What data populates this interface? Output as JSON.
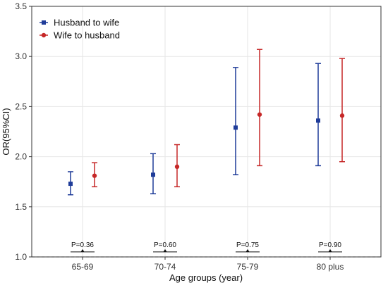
{
  "chart_data": {
    "type": "scatter",
    "xlabel": "Age groups (year)",
    "ylabel": "OR(95%CI)",
    "ylim": [
      1.0,
      3.5
    ],
    "yticks": [
      "1.0",
      "1.5",
      "2.0",
      "2.5",
      "3.0",
      "3.5"
    ],
    "categories": [
      "65-69",
      "70-74",
      "75-79",
      "80 plus"
    ],
    "grid": true,
    "legend_position": "top-left",
    "reference_line": 1.0,
    "series": [
      {
        "name": "Husband to wife",
        "color": "#1f3c99",
        "marker": "square",
        "values": [
          1.73,
          1.82,
          2.29,
          2.36
        ],
        "lower": [
          1.62,
          1.63,
          1.82,
          1.91
        ],
        "upper": [
          1.85,
          2.03,
          2.89,
          2.93
        ]
      },
      {
        "name": "Wife to husband",
        "color": "#c62828",
        "marker": "circle",
        "values": [
          1.81,
          1.9,
          2.42,
          2.41
        ],
        "lower": [
          1.7,
          1.7,
          1.91,
          1.95
        ],
        "upper": [
          1.94,
          2.12,
          3.07,
          2.98
        ]
      }
    ],
    "annotations": [
      "P=0.36",
      "P=0.60",
      "P=0.75",
      "P=0.90"
    ]
  }
}
